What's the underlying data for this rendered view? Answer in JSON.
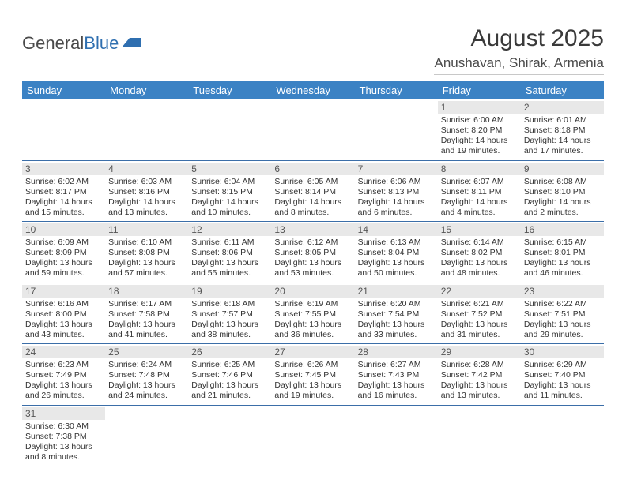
{
  "brand": {
    "part1": "General",
    "part2": "Blue"
  },
  "title": "August 2025",
  "location": "Anushavan, Shirak, Armenia",
  "colors": {
    "header_bg": "#3b82c4",
    "header_fg": "#ffffff",
    "daynum_bg": "#e8e8e8",
    "row_border": "#3b6ea8"
  },
  "weekdays": [
    "Sunday",
    "Monday",
    "Tuesday",
    "Wednesday",
    "Thursday",
    "Friday",
    "Saturday"
  ],
  "weeks": [
    [
      null,
      null,
      null,
      null,
      null,
      {
        "n": "1",
        "sr": "6:00 AM",
        "ss": "8:20 PM",
        "dl": "14 hours and 19 minutes."
      },
      {
        "n": "2",
        "sr": "6:01 AM",
        "ss": "8:18 PM",
        "dl": "14 hours and 17 minutes."
      }
    ],
    [
      {
        "n": "3",
        "sr": "6:02 AM",
        "ss": "8:17 PM",
        "dl": "14 hours and 15 minutes."
      },
      {
        "n": "4",
        "sr": "6:03 AM",
        "ss": "8:16 PM",
        "dl": "14 hours and 13 minutes."
      },
      {
        "n": "5",
        "sr": "6:04 AM",
        "ss": "8:15 PM",
        "dl": "14 hours and 10 minutes."
      },
      {
        "n": "6",
        "sr": "6:05 AM",
        "ss": "8:14 PM",
        "dl": "14 hours and 8 minutes."
      },
      {
        "n": "7",
        "sr": "6:06 AM",
        "ss": "8:13 PM",
        "dl": "14 hours and 6 minutes."
      },
      {
        "n": "8",
        "sr": "6:07 AM",
        "ss": "8:11 PM",
        "dl": "14 hours and 4 minutes."
      },
      {
        "n": "9",
        "sr": "6:08 AM",
        "ss": "8:10 PM",
        "dl": "14 hours and 2 minutes."
      }
    ],
    [
      {
        "n": "10",
        "sr": "6:09 AM",
        "ss": "8:09 PM",
        "dl": "13 hours and 59 minutes."
      },
      {
        "n": "11",
        "sr": "6:10 AM",
        "ss": "8:08 PM",
        "dl": "13 hours and 57 minutes."
      },
      {
        "n": "12",
        "sr": "6:11 AM",
        "ss": "8:06 PM",
        "dl": "13 hours and 55 minutes."
      },
      {
        "n": "13",
        "sr": "6:12 AM",
        "ss": "8:05 PM",
        "dl": "13 hours and 53 minutes."
      },
      {
        "n": "14",
        "sr": "6:13 AM",
        "ss": "8:04 PM",
        "dl": "13 hours and 50 minutes."
      },
      {
        "n": "15",
        "sr": "6:14 AM",
        "ss": "8:02 PM",
        "dl": "13 hours and 48 minutes."
      },
      {
        "n": "16",
        "sr": "6:15 AM",
        "ss": "8:01 PM",
        "dl": "13 hours and 46 minutes."
      }
    ],
    [
      {
        "n": "17",
        "sr": "6:16 AM",
        "ss": "8:00 PM",
        "dl": "13 hours and 43 minutes."
      },
      {
        "n": "18",
        "sr": "6:17 AM",
        "ss": "7:58 PM",
        "dl": "13 hours and 41 minutes."
      },
      {
        "n": "19",
        "sr": "6:18 AM",
        "ss": "7:57 PM",
        "dl": "13 hours and 38 minutes."
      },
      {
        "n": "20",
        "sr": "6:19 AM",
        "ss": "7:55 PM",
        "dl": "13 hours and 36 minutes."
      },
      {
        "n": "21",
        "sr": "6:20 AM",
        "ss": "7:54 PM",
        "dl": "13 hours and 33 minutes."
      },
      {
        "n": "22",
        "sr": "6:21 AM",
        "ss": "7:52 PM",
        "dl": "13 hours and 31 minutes."
      },
      {
        "n": "23",
        "sr": "6:22 AM",
        "ss": "7:51 PM",
        "dl": "13 hours and 29 minutes."
      }
    ],
    [
      {
        "n": "24",
        "sr": "6:23 AM",
        "ss": "7:49 PM",
        "dl": "13 hours and 26 minutes."
      },
      {
        "n": "25",
        "sr": "6:24 AM",
        "ss": "7:48 PM",
        "dl": "13 hours and 24 minutes."
      },
      {
        "n": "26",
        "sr": "6:25 AM",
        "ss": "7:46 PM",
        "dl": "13 hours and 21 minutes."
      },
      {
        "n": "27",
        "sr": "6:26 AM",
        "ss": "7:45 PM",
        "dl": "13 hours and 19 minutes."
      },
      {
        "n": "28",
        "sr": "6:27 AM",
        "ss": "7:43 PM",
        "dl": "13 hours and 16 minutes."
      },
      {
        "n": "29",
        "sr": "6:28 AM",
        "ss": "7:42 PM",
        "dl": "13 hours and 13 minutes."
      },
      {
        "n": "30",
        "sr": "6:29 AM",
        "ss": "7:40 PM",
        "dl": "13 hours and 11 minutes."
      }
    ],
    [
      {
        "n": "31",
        "sr": "6:30 AM",
        "ss": "7:38 PM",
        "dl": "13 hours and 8 minutes."
      },
      null,
      null,
      null,
      null,
      null,
      null
    ]
  ],
  "labels": {
    "sunrise": "Sunrise:",
    "sunset": "Sunset:",
    "daylight": "Daylight:"
  }
}
